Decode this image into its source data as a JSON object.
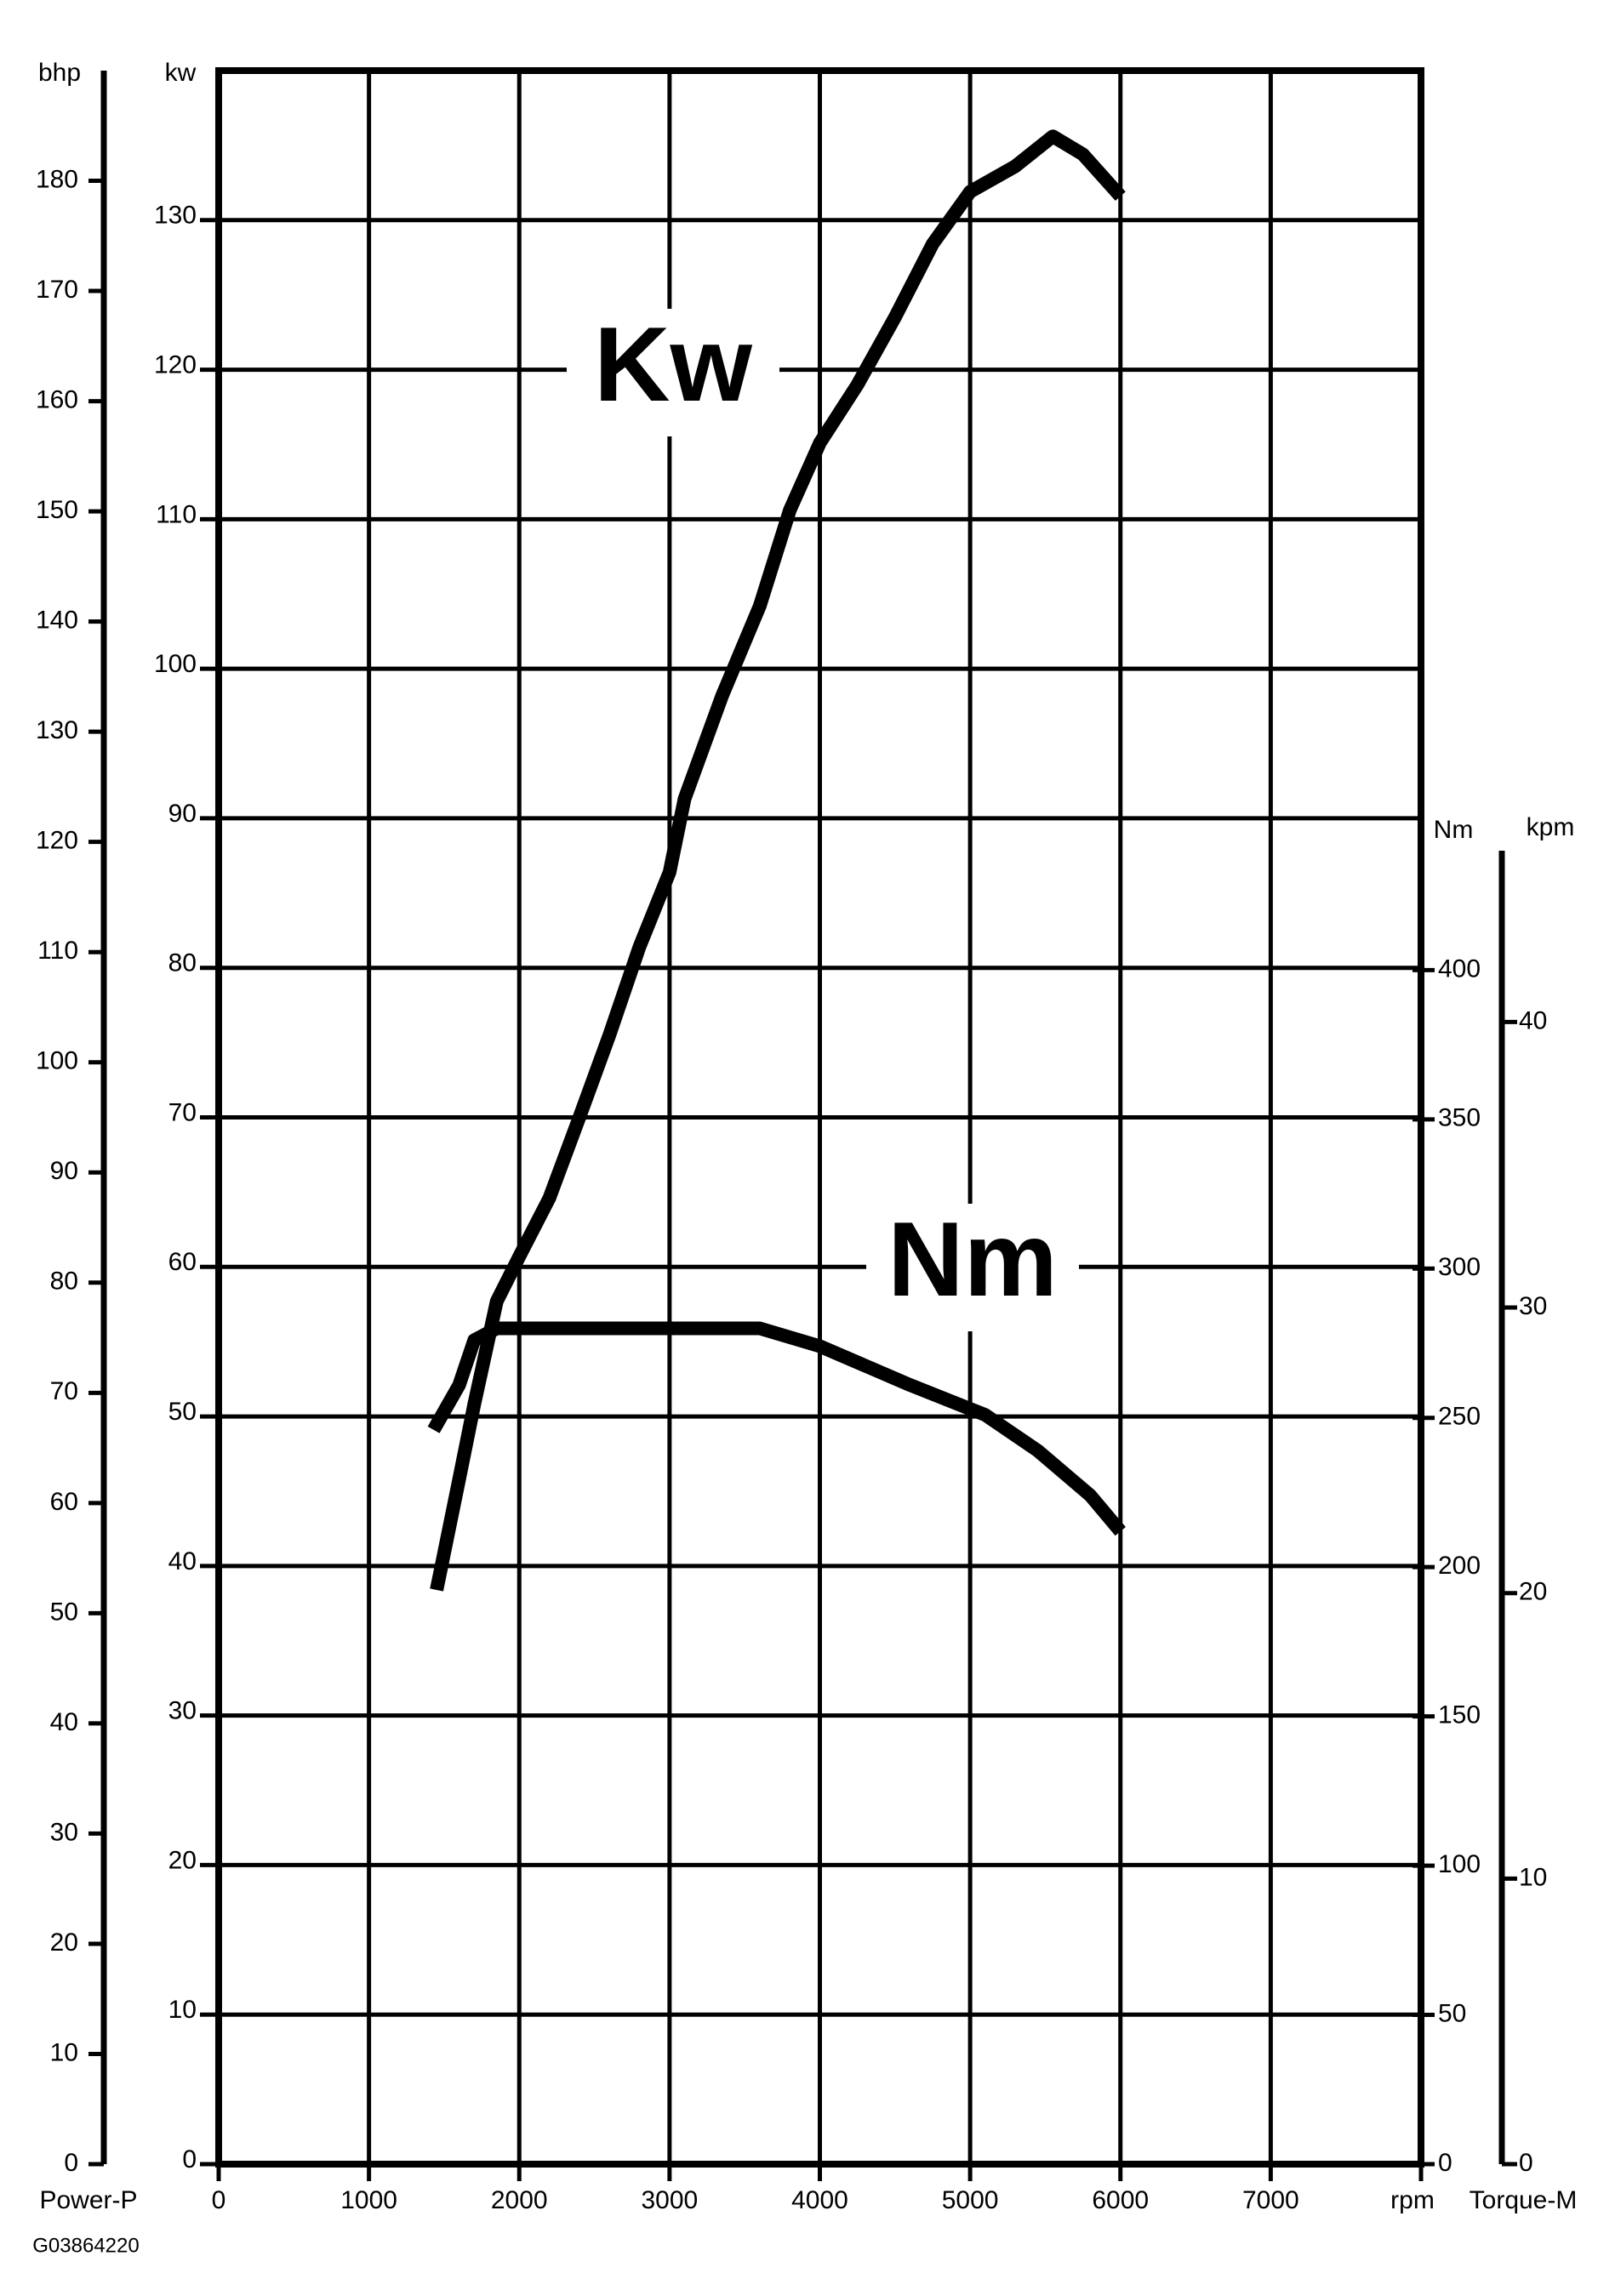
{
  "chart_data": {
    "type": "line",
    "x_label": "rpm",
    "y_label": "kw",
    "y2_label": "Nm",
    "bhp_axis": {
      "label": "bhp",
      "lim": [
        0,
        190
      ],
      "ticks": [
        0,
        10,
        20,
        30,
        40,
        50,
        60,
        70,
        80,
        90,
        100,
        110,
        120,
        130,
        140,
        150,
        160,
        170,
        180
      ]
    },
    "kpm_axis": {
      "label": "kpm",
      "lim": [
        0,
        46
      ],
      "ticks": [
        0,
        10,
        20,
        30,
        40
      ]
    },
    "left_footer": "Power-P",
    "right_footer": "Torque-M",
    "code": "G03864220",
    "xlim": [
      0,
      8000
    ],
    "xticks": [
      0,
      1000,
      2000,
      3000,
      4000,
      5000,
      6000,
      7000
    ],
    "ylim": [
      0,
      140
    ],
    "yticks": [
      0,
      10,
      20,
      30,
      40,
      50,
      60,
      70,
      80,
      90,
      100,
      110,
      120,
      130
    ],
    "y2lim": [
      0,
      440
    ],
    "y2ticks": [
      0,
      50,
      100,
      150,
      200,
      250,
      300,
      350,
      400
    ],
    "grid": true,
    "series": [
      {
        "name": "Kw",
        "color": "#000000",
        "x": [
          1450,
          1600,
          1700,
          1850,
          2000,
          2200,
          2400,
          2600,
          2800,
          3000,
          3100,
          3350,
          3600,
          3800,
          4000,
          4250,
          4500,
          4750,
          5000,
          5300,
          5550,
          5750,
          6000
        ],
        "values": [
          38.4,
          45.8,
          50.8,
          57.7,
          60.7,
          64.6,
          70,
          75.5,
          81.4,
          86.4,
          91.3,
          98.2,
          104.2,
          110.6,
          115.1,
          119,
          123.5,
          128.4,
          131.9,
          133.6,
          135.6,
          134.4,
          131.6
        ]
      },
      {
        "name": "Nm",
        "color": "#000000",
        "axis": "y2",
        "x": [
          1430,
          1600,
          1700,
          1850,
          3600,
          4000,
          4600,
          5100,
          5450,
          5800,
          6000
        ],
        "values": [
          246,
          261,
          276,
          280,
          280,
          274,
          261,
          251,
          239,
          224,
          212
        ]
      }
    ]
  }
}
